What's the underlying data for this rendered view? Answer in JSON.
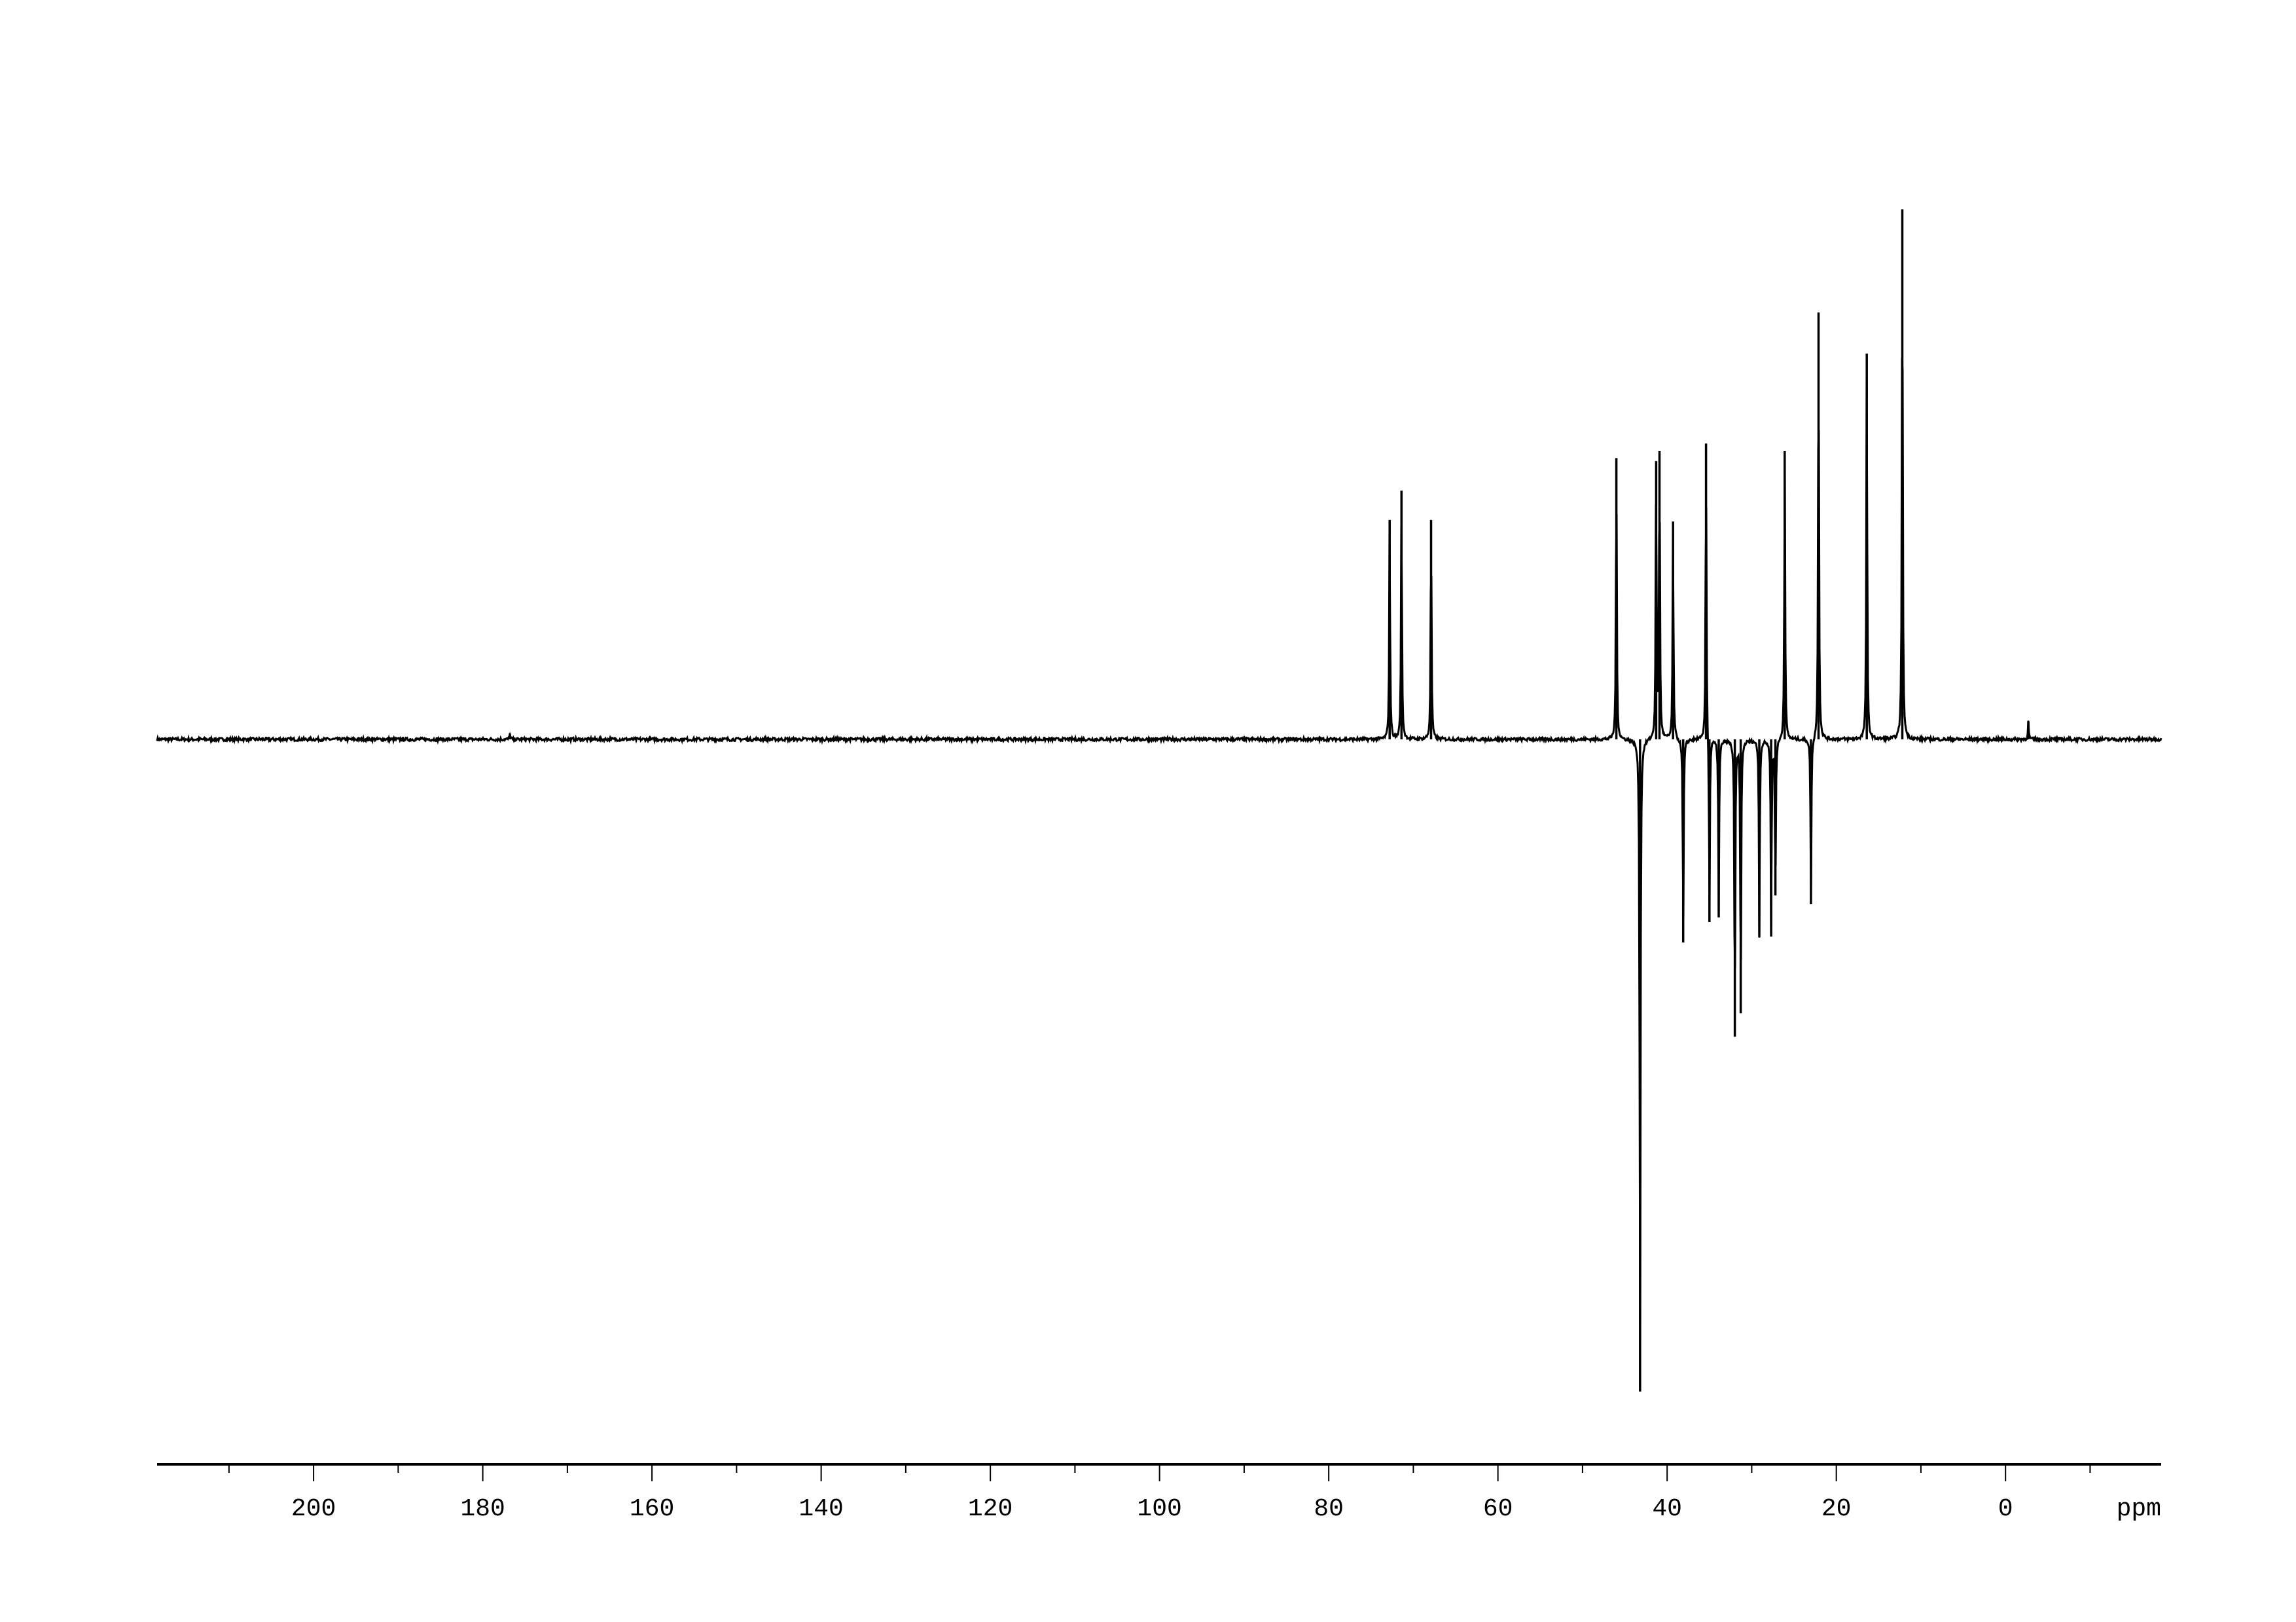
{
  "chart_data": {
    "type": "line",
    "title": "",
    "xlabel": "ppm",
    "ylabel": "",
    "xlim": [
      218.5,
      -18.4
    ],
    "x_reversed": true,
    "grid": false,
    "legend": "none",
    "line_color": "#000000",
    "background": "#ffffff",
    "x_ticks": [
      200,
      180,
      160,
      140,
      120,
      100,
      80,
      60,
      40,
      20,
      0
    ],
    "x_tick_labels": [
      "200",
      "180",
      "160",
      "140",
      "120",
      "100",
      "80",
      "60",
      "40",
      "20",
      "0"
    ],
    "x_minor_step": 10,
    "intensity_units": "arbitrary",
    "ylim": [
      -480,
      400
    ],
    "peaks": [
      {
        "ppm": 176.8,
        "intensity": 4
      },
      {
        "ppm": 72.8,
        "intensity": 149
      },
      {
        "ppm": 71.4,
        "intensity": 169
      },
      {
        "ppm": 67.9,
        "intensity": 149
      },
      {
        "ppm": 46.0,
        "intensity": 191
      },
      {
        "ppm": 43.2,
        "intensity": -443
      },
      {
        "ppm": 41.3,
        "intensity": 189
      },
      {
        "ppm": 40.9,
        "intensity": 196
      },
      {
        "ppm": 39.3,
        "intensity": 148
      },
      {
        "ppm": 38.1,
        "intensity": -138
      },
      {
        "ppm": 35.4,
        "intensity": 201
      },
      {
        "ppm": 35.0,
        "intensity": -124
      },
      {
        "ppm": 33.9,
        "intensity": -121
      },
      {
        "ppm": 32.0,
        "intensity": -202
      },
      {
        "ppm": 31.3,
        "intensity": -186
      },
      {
        "ppm": 29.1,
        "intensity": -134
      },
      {
        "ppm": 27.7,
        "intensity": -134
      },
      {
        "ppm": 27.2,
        "intensity": -106
      },
      {
        "ppm": 26.1,
        "intensity": 196
      },
      {
        "ppm": 23.0,
        "intensity": -112
      },
      {
        "ppm": 22.1,
        "intensity": 290
      },
      {
        "ppm": 16.4,
        "intensity": 262
      },
      {
        "ppm": 12.2,
        "intensity": 360
      },
      {
        "ppm": -2.7,
        "intensity": 12
      }
    ]
  }
}
